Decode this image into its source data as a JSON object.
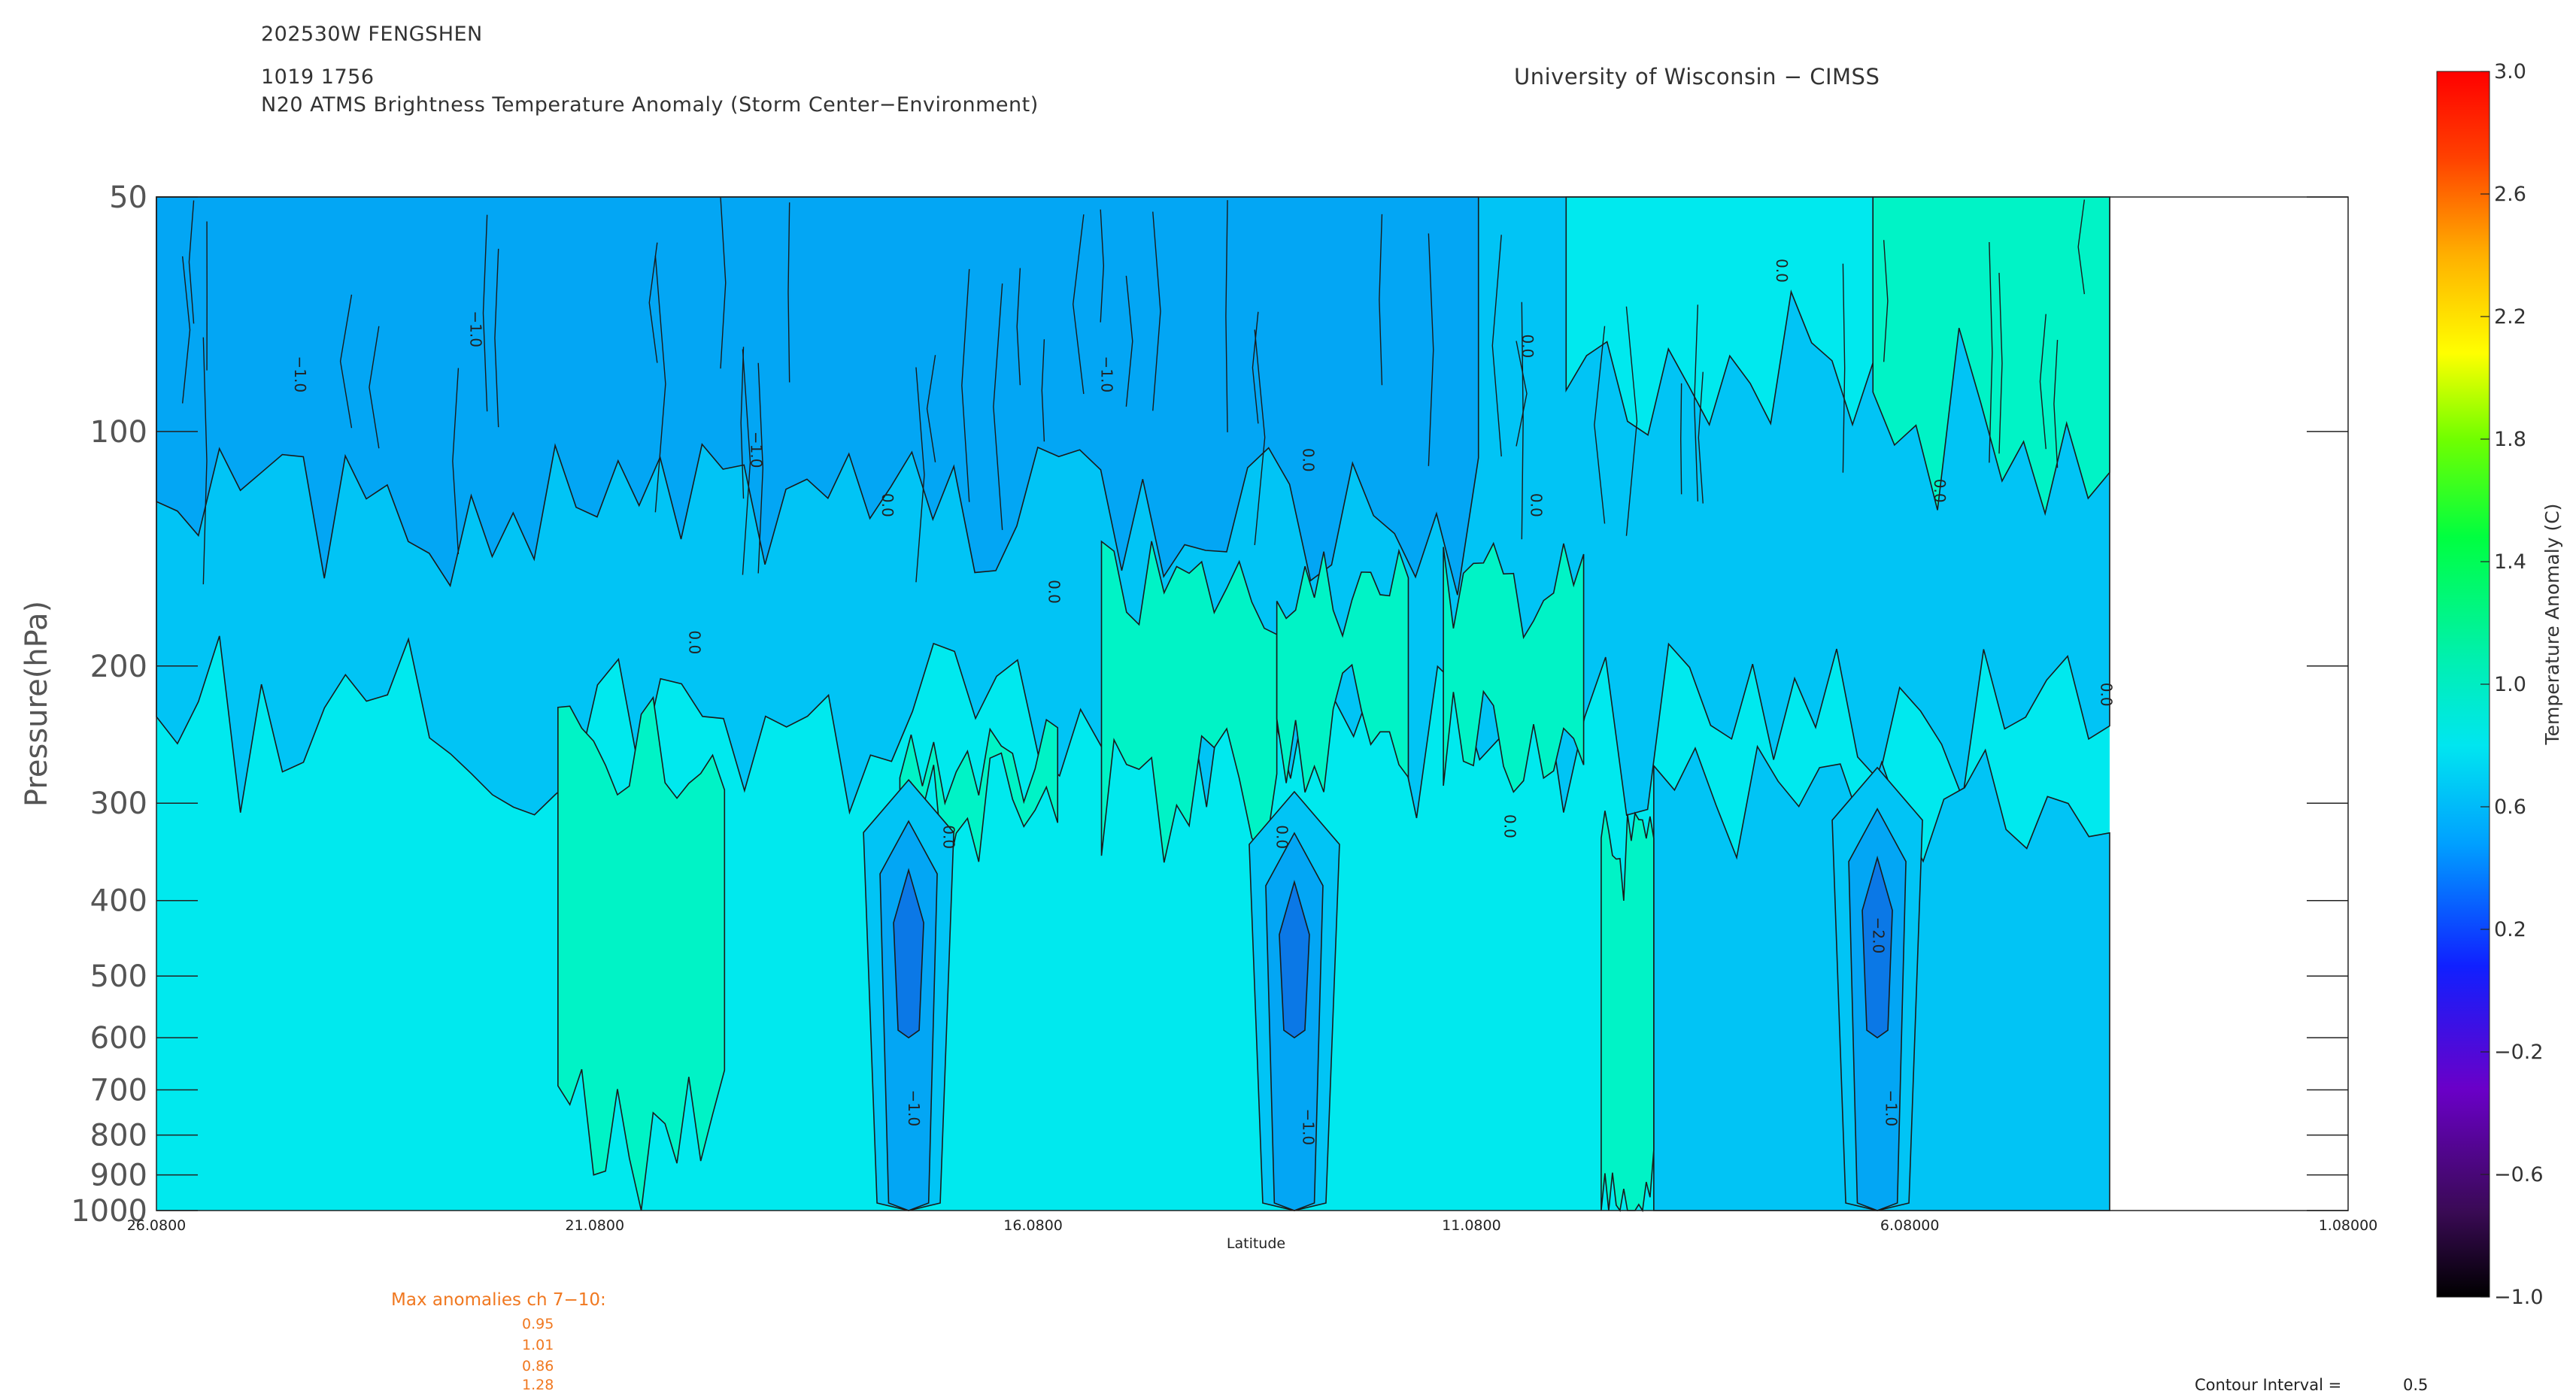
{
  "header": {
    "storm": "202530W FENGSHEN",
    "datetime": "1019 1756",
    "product": "N20 ATMS Brightness Temperature Anomaly (Storm Center−Environment)",
    "institution": "University of Wisconsin − CIMSS"
  },
  "chart_data": {
    "type": "heatmap",
    "xlabel": "Latitude",
    "ylabel": "Pressure(hPa)",
    "x_ticks": [
      "26.0800",
      "21.0800",
      "16.0800",
      "11.0800",
      "6.08000",
      "1.08000"
    ],
    "x_tick_values": [
      26.08,
      21.08,
      16.08,
      11.08,
      6.08,
      1.08
    ],
    "xlim": [
      26.08,
      1.08
    ],
    "y_ticks": [
      "50",
      "100",
      "200",
      "300",
      "400",
      "500",
      "600",
      "700",
      "800",
      "900",
      "1000"
    ],
    "y_tick_values": [
      50,
      100,
      200,
      300,
      400,
      500,
      600,
      700,
      800,
      900,
      1000
    ],
    "ylim": [
      50,
      1000
    ],
    "y_scale": "log",
    "data_extent_latitude": [
      26.08,
      3.8
    ],
    "colorbar": {
      "label": "Temperature Anomaly (C)",
      "ticks": [
        "3.0",
        "2.6",
        "2.2",
        "1.8",
        "1.4",
        "1.0",
        "0.6",
        "0.2",
        "−0.2",
        "−0.6",
        "−1.0"
      ],
      "tick_values": [
        3.0,
        2.6,
        2.2,
        1.8,
        1.4,
        1.0,
        0.6,
        0.2,
        -0.2,
        -0.6,
        -1.0
      ],
      "range": [
        -1.0,
        3.0
      ]
    },
    "contour_labels": [
      "0.0",
      "−1.0",
      "−2.0"
    ],
    "fill_colors": {
      "minus2": "#0b78e6",
      "minus1": "#03a6f4",
      "minus05": "#01c4f5",
      "zero": "#00e9ee",
      "plus05": "#00f3c6"
    },
    "warm_pockets": [
      {
        "lat_from": 17.6,
        "lat_to": 15.8,
        "p_top": 250,
        "p_bottom": 320
      },
      {
        "lat_from": 15.3,
        "lat_to": 13.3,
        "p_top": 150,
        "p_bottom": 290
      },
      {
        "lat_from": 13.3,
        "lat_to": 11.8,
        "p_top": 150,
        "p_bottom": 240
      },
      {
        "lat_from": 11.4,
        "lat_to": 9.8,
        "p_top": 150,
        "p_bottom": 270
      },
      {
        "lat_from": 21.5,
        "lat_to": 19.6,
        "p_top": 240,
        "p_bottom": 820
      },
      {
        "lat_from": 9.6,
        "lat_to": 9.0,
        "p_top": 330,
        "p_bottom": 1000
      }
    ],
    "cold_cores": [
      {
        "lat": 17.5,
        "p_top": 280,
        "p_bottom": 1000,
        "minimum": -2.0
      },
      {
        "lat": 13.1,
        "p_top": 290,
        "p_bottom": 1000,
        "minimum": -2.0
      },
      {
        "lat": 6.45,
        "p_top": 270,
        "p_bottom": 1000,
        "minimum": -2.0
      }
    ]
  },
  "max_anomalies": {
    "title": "Max anomalies ch 7−10:",
    "values": [
      "0.95",
      "1.01",
      "0.86",
      "1.28"
    ]
  },
  "contour_interval": {
    "label": "Contour Interval =",
    "value": "0.5"
  }
}
